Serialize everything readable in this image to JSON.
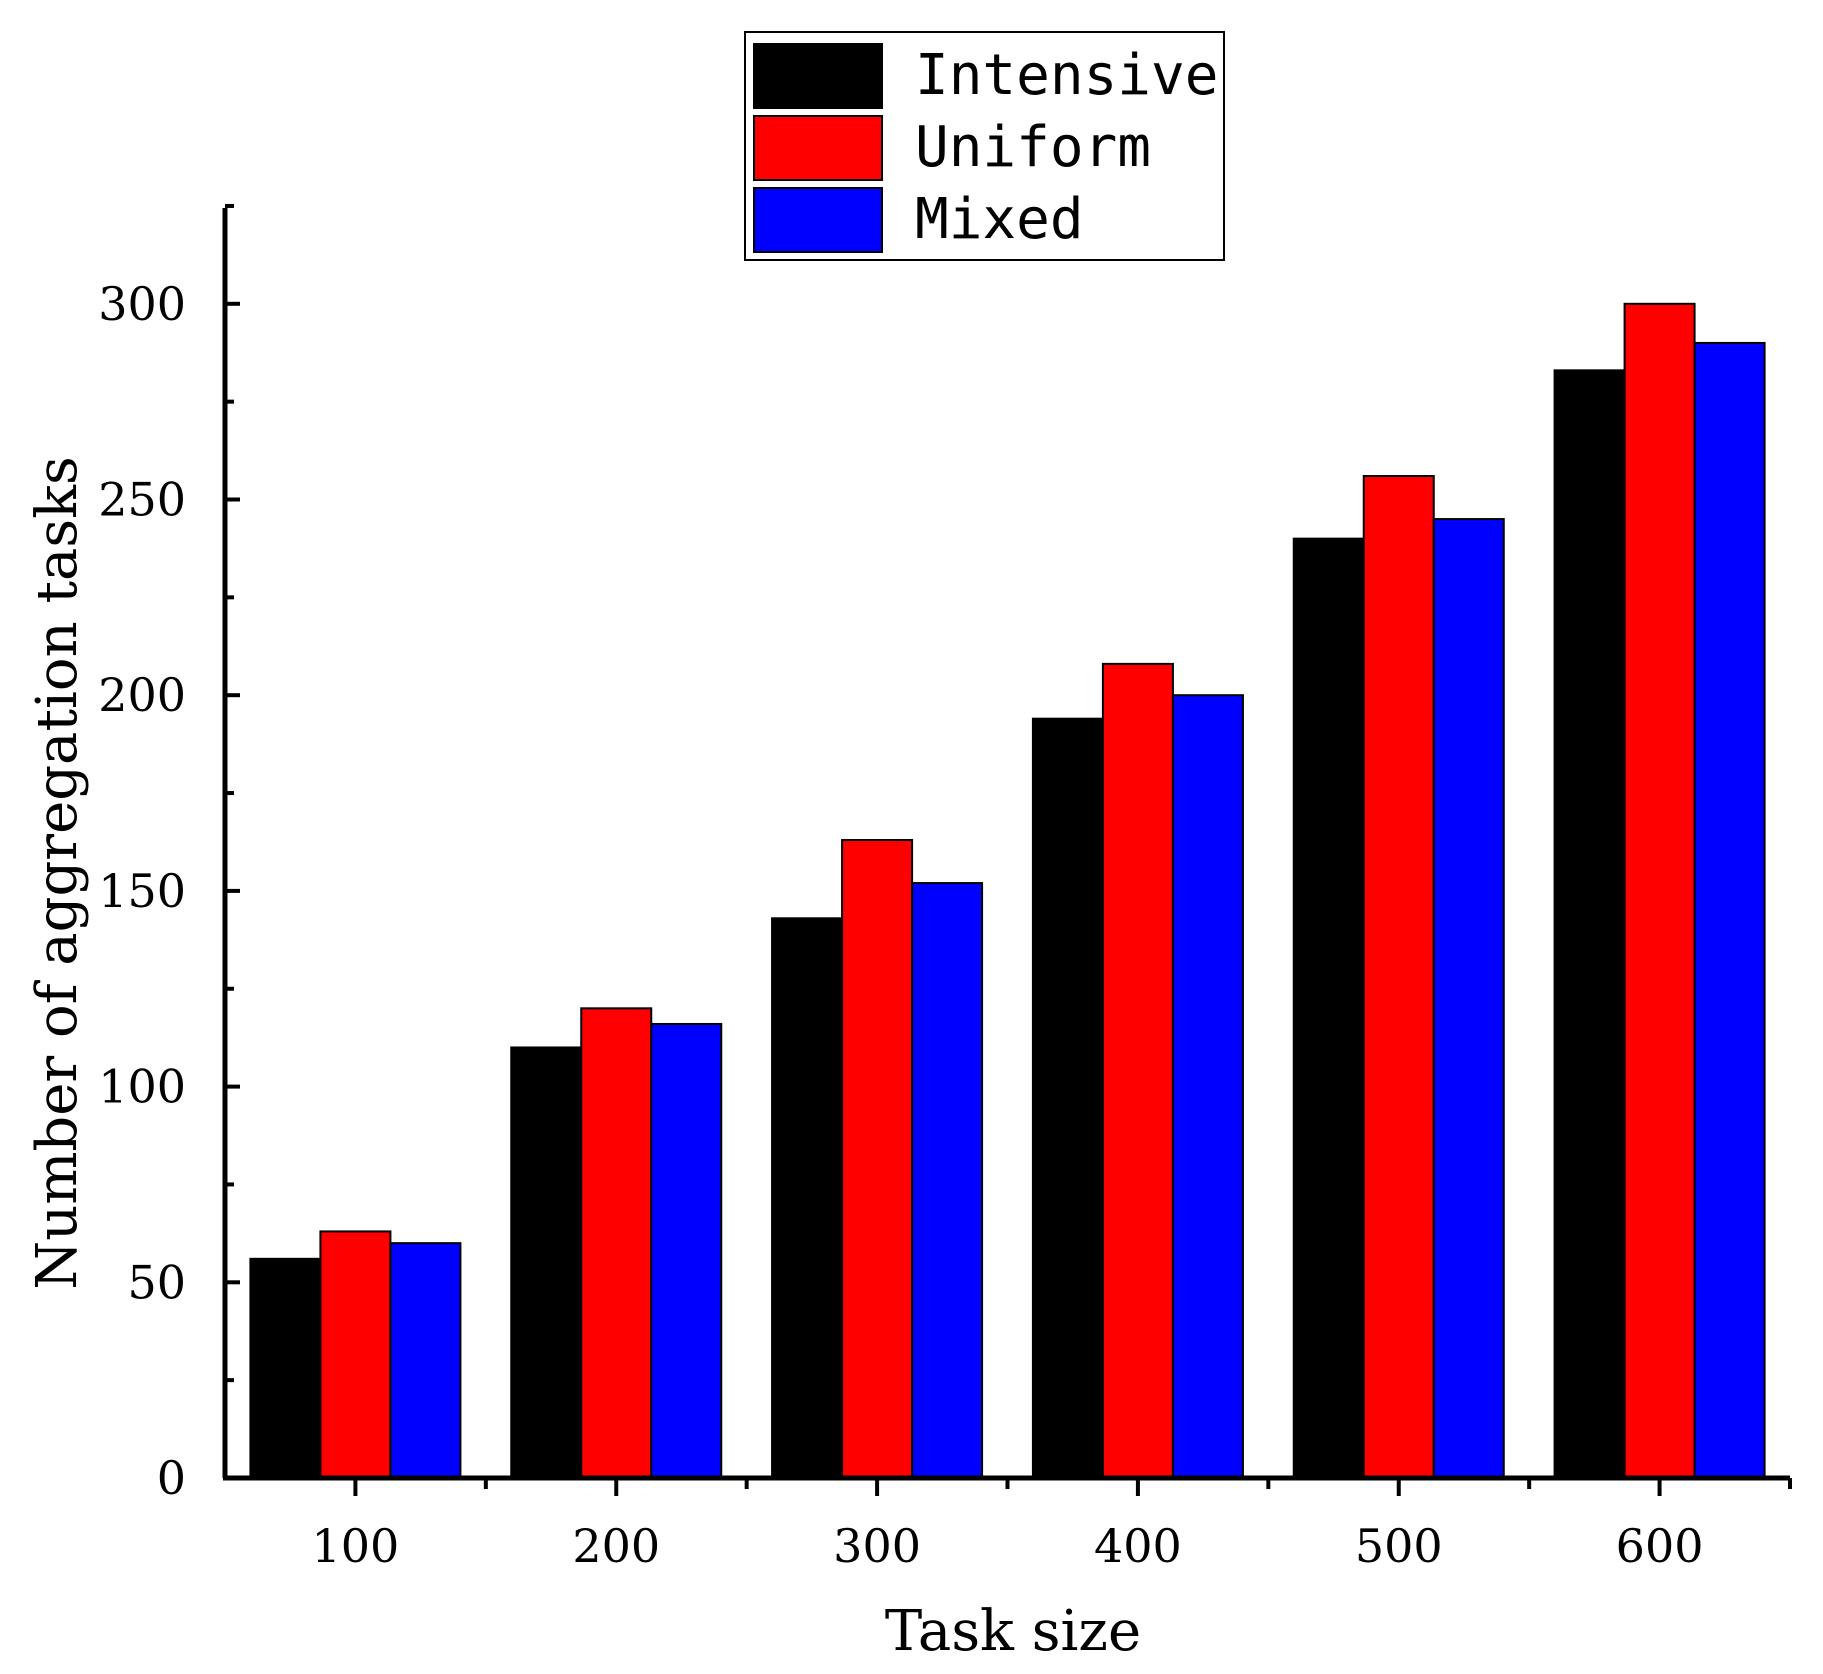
{
  "chart_data": {
    "type": "bar",
    "title": "",
    "xlabel": "Task size",
    "ylabel": "Number of aggregation tasks",
    "categories": [
      "100",
      "200",
      "300",
      "400",
      "500",
      "600"
    ],
    "series": [
      {
        "name": "Intensive",
        "color": "#000000",
        "values": [
          56,
          110,
          143,
          194,
          240,
          283
        ]
      },
      {
        "name": "Uniform",
        "color": "#ff0000",
        "values": [
          63,
          120,
          163,
          208,
          256,
          300
        ]
      },
      {
        "name": "Mixed",
        "color": "#0000ff",
        "values": [
          60,
          116,
          152,
          200,
          245,
          290
        ]
      }
    ],
    "ylim": [
      0,
      325
    ],
    "yticks": [
      "0",
      "50",
      "100",
      "150",
      "200",
      "250",
      "300"
    ],
    "grid": false,
    "legend_position": "top-center"
  }
}
